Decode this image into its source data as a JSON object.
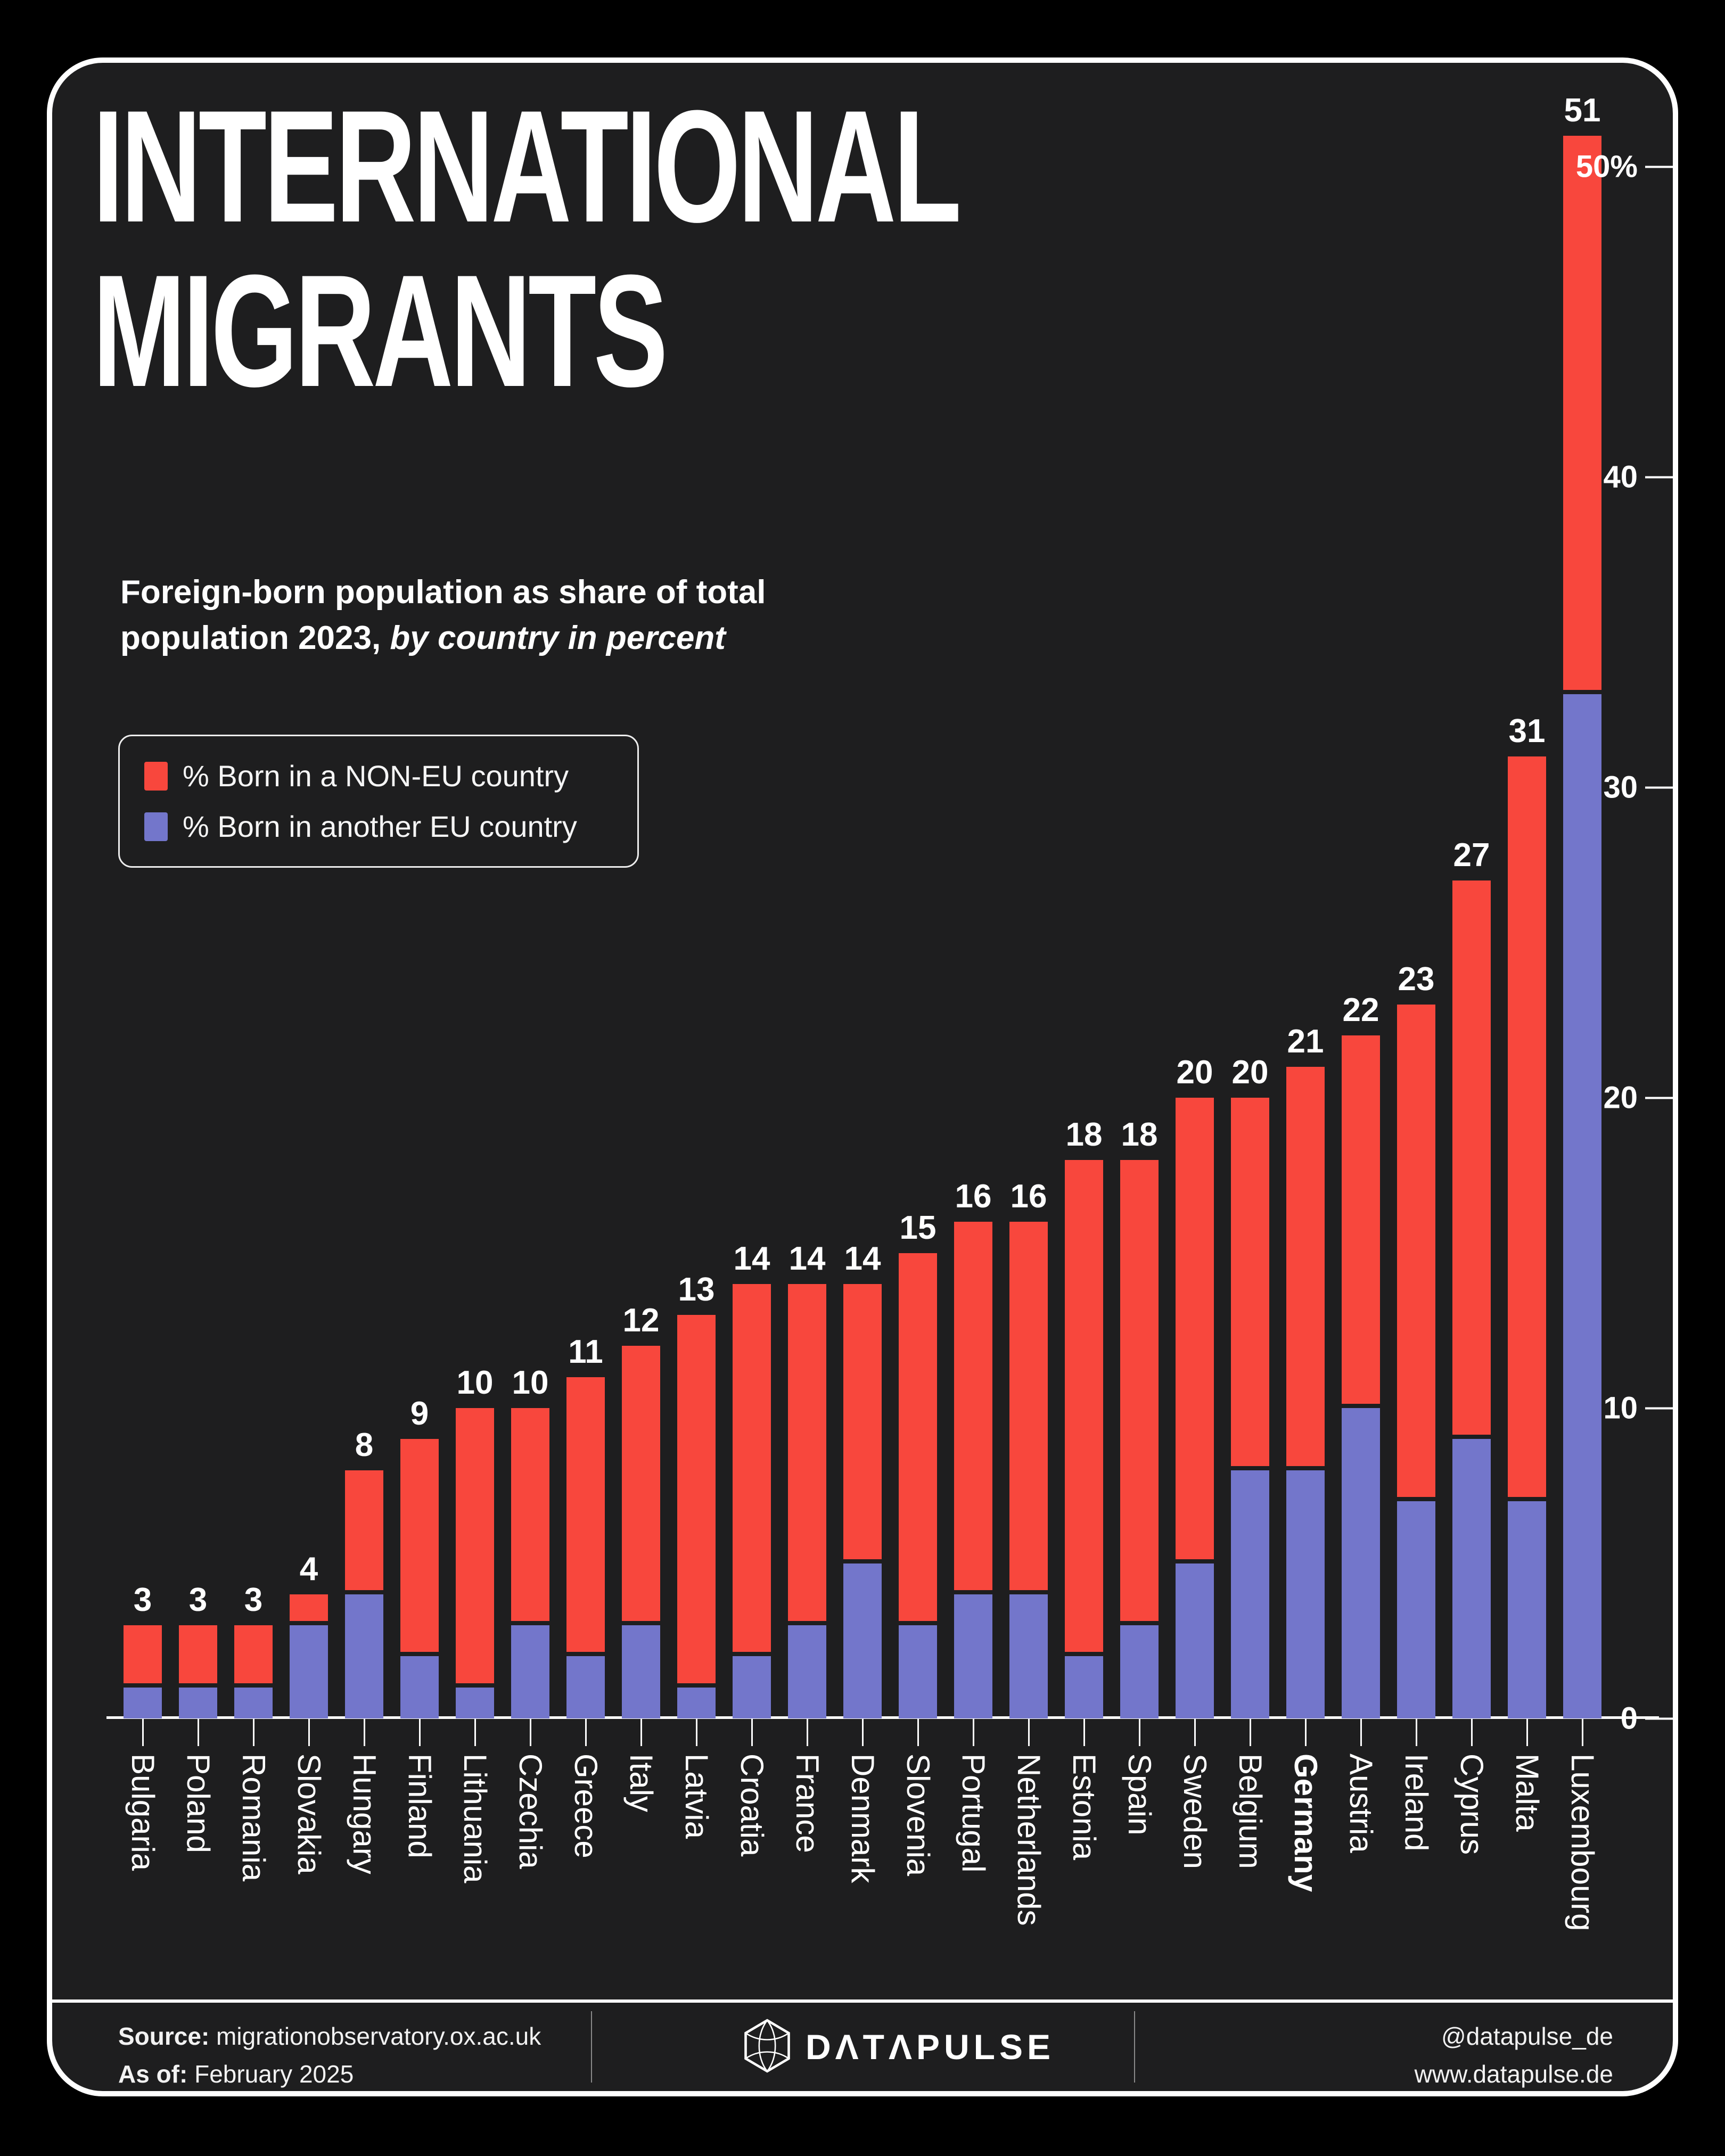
{
  "poster": {
    "title_line1": "INTERNATIONAL",
    "title_line2": "MIGRANTS",
    "subtitle_line1": "Foreign-born population as share of total",
    "subtitle_line2_regular": "population 2023, ",
    "subtitle_line2_italic": "by country in percent"
  },
  "legend": {
    "items": [
      {
        "label": "% Born in a NON-EU country",
        "color": "#F8473D"
      },
      {
        "label": "% Born in another EU country",
        "color": "#7376CB"
      }
    ]
  },
  "chart_data": {
    "type": "bar",
    "stacked": true,
    "title": "International migrants - foreign-born population as share of total population 2023",
    "unit": "percent of total population",
    "categories": [
      "Bulgaria",
      "Poland",
      "Romania",
      "Slovakia",
      "Hungary",
      "Finland",
      "Lithuania",
      "Czechia",
      "Greece",
      "Italy",
      "Latvia",
      "Croatia",
      "France",
      "Denmark",
      "Slovenia",
      "Portugal",
      "Netherlands",
      "Estonia",
      "Spain",
      "Sweden",
      "Belgium",
      "Germany",
      "Austria",
      "Ireland",
      "Cyprus",
      "Malta",
      "Luxembourg"
    ],
    "series": [
      {
        "name": "% Born in a NON-EU country",
        "color": "#F8473D",
        "values": [
          2,
          2,
          2,
          1,
          4,
          7,
          9,
          7,
          9,
          9,
          12,
          12,
          11,
          9,
          12,
          12,
          12,
          16,
          15,
          15,
          12,
          13,
          12,
          16,
          18,
          24,
          18
        ]
      },
      {
        "name": "% Born in another EU country",
        "color": "#7376CB",
        "values": [
          1,
          1,
          1,
          3,
          4,
          2,
          1,
          3,
          2,
          3,
          1,
          2,
          3,
          5,
          3,
          4,
          4,
          2,
          3,
          5,
          8,
          8,
          10,
          7,
          9,
          7,
          33
        ]
      }
    ],
    "totals": [
      3,
      3,
      3,
      4,
      8,
      9,
      10,
      10,
      11,
      12,
      13,
      14,
      14,
      14,
      15,
      16,
      16,
      18,
      18,
      20,
      20,
      21,
      22,
      23,
      27,
      31,
      51
    ],
    "highlighted_category": "Germany",
    "y_ticks": [
      {
        "label": "50%",
        "value": 50
      },
      {
        "label": "40",
        "value": 40
      },
      {
        "label": "30",
        "value": 30
      },
      {
        "label": "20",
        "value": 20
      },
      {
        "label": "10",
        "value": 10
      },
      {
        "label": "0",
        "value": 0
      }
    ],
    "ylim": [
      0,
      52
    ],
    "grid": false,
    "legend_position": "top-left"
  },
  "footer": {
    "source_label": "Source:",
    "source_value": " migrationobservatory.ox.ac.uk",
    "asof_label": "As of:",
    "asof_value": " February 2025",
    "brand_icon": "hexagon-logo-icon",
    "brand_wordmark": "DΛTΛPULSE",
    "handle": "@datapulse_de",
    "website": "www.datapulse.de"
  }
}
